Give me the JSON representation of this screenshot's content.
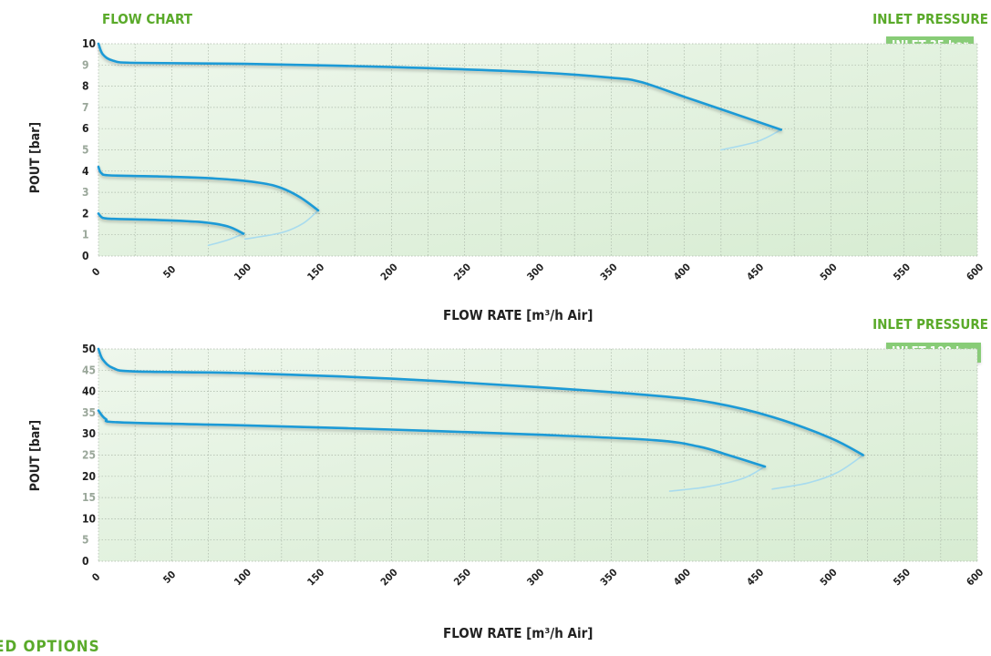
{
  "flow_chart_label": "FLOW CHART",
  "footer_partial_text": "ED OPTIONS",
  "colors": {
    "accent_green": "#5aaa2a",
    "curve_blue": "#1a9ad6",
    "legend_bg": "#88cc77",
    "plot_bg": "#e4f2e0"
  },
  "chart_data": [
    {
      "type": "line",
      "xlabel": "FLOW RATE [m³/h Air]",
      "ylabel": "POUT [bar]",
      "xlim": [
        0,
        600
      ],
      "ylim": [
        0,
        10
      ],
      "x_ticks": [
        "0",
        "50",
        "100",
        "150",
        "200",
        "250",
        "300",
        "350",
        "400",
        "450",
        "500",
        "550",
        "600"
      ],
      "y_ticks": [
        {
          "v": 0,
          "label": "0",
          "major": true
        },
        {
          "v": 1,
          "label": "1",
          "major": false
        },
        {
          "v": 2,
          "label": "2",
          "major": true
        },
        {
          "v": 3,
          "label": "3",
          "major": false
        },
        {
          "v": 4,
          "label": "4",
          "major": true
        },
        {
          "v": 5,
          "label": "5",
          "major": false
        },
        {
          "v": 6,
          "label": "6",
          "major": true
        },
        {
          "v": 7,
          "label": "7",
          "major": false
        },
        {
          "v": 8,
          "label": "8",
          "major": true
        },
        {
          "v": 9,
          "label": "9",
          "major": false
        },
        {
          "v": 10,
          "label": "10",
          "major": true
        }
      ],
      "grid": true,
      "legend_title": "INLET PRESSURE",
      "legend_label": "INLET  35 bar",
      "legend_position": "top-right",
      "series": [
        {
          "points": [
            [
              0,
              10
            ],
            [
              3,
              9.5
            ],
            [
              10,
              9.2
            ],
            [
              25,
              9.1
            ],
            [
              100,
              9.05
            ],
            [
              200,
              8.9
            ],
            [
              300,
              8.65
            ],
            [
              350,
              8.4
            ],
            [
              370,
              8.2
            ],
            [
              400,
              7.5
            ],
            [
              430,
              6.8
            ],
            [
              466,
              5.95
            ]
          ],
          "tail": [
            [
              466,
              5.95
            ],
            [
              450,
              5.4
            ],
            [
              425,
              5.0
            ]
          ]
        },
        {
          "points": [
            [
              0,
              4.2
            ],
            [
              2,
              3.9
            ],
            [
              8,
              3.8
            ],
            [
              40,
              3.75
            ],
            [
              80,
              3.65
            ],
            [
              110,
              3.45
            ],
            [
              125,
              3.2
            ],
            [
              138,
              2.75
            ],
            [
              150,
              2.15
            ]
          ],
          "tail": [
            [
              150,
              2.15
            ],
            [
              140,
              1.55
            ],
            [
              125,
              1.1
            ],
            [
              100,
              0.8
            ]
          ]
        },
        {
          "points": [
            [
              0,
              2
            ],
            [
              3,
              1.8
            ],
            [
              10,
              1.75
            ],
            [
              40,
              1.7
            ],
            [
              70,
              1.6
            ],
            [
              88,
              1.4
            ],
            [
              99,
              1.05
            ]
          ],
          "tail": [
            [
              99,
              1.05
            ],
            [
              88,
              0.75
            ],
            [
              75,
              0.5
            ]
          ]
        }
      ]
    },
    {
      "type": "line",
      "xlabel": "FLOW RATE [m³/h Air]",
      "ylabel": "POUT [bar]",
      "xlim": [
        0,
        600
      ],
      "ylim": [
        0,
        50
      ],
      "x_ticks": [
        "0",
        "50",
        "100",
        "150",
        "200",
        "250",
        "300",
        "350",
        "400",
        "450",
        "500",
        "550",
        "600"
      ],
      "y_ticks": [
        {
          "v": 0,
          "label": "0",
          "major": true
        },
        {
          "v": 5,
          "label": "5",
          "major": false
        },
        {
          "v": 10,
          "label": "10",
          "major": true
        },
        {
          "v": 15,
          "label": "15",
          "major": false
        },
        {
          "v": 20,
          "label": "20",
          "major": true
        },
        {
          "v": 25,
          "label": "25",
          "major": false
        },
        {
          "v": 30,
          "label": "30",
          "major": true
        },
        {
          "v": 35,
          "label": "35",
          "major": false
        },
        {
          "v": 40,
          "label": "40",
          "major": true
        },
        {
          "v": 45,
          "label": "45",
          "major": false
        },
        {
          "v": 50,
          "label": "50",
          "major": true
        }
      ],
      "grid": true,
      "legend_title": "INLET PRESSURE",
      "legend_label": "INLET 100 bar",
      "legend_position": "top-right",
      "series": [
        {
          "points": [
            [
              0,
              50
            ],
            [
              3,
              47.5
            ],
            [
              10,
              45.5
            ],
            [
              25,
              44.7
            ],
            [
              100,
              44.3
            ],
            [
              200,
              43
            ],
            [
              300,
              41
            ],
            [
              380,
              39
            ],
            [
              420,
              37.3
            ],
            [
              460,
              34
            ],
            [
              500,
              29
            ],
            [
              522,
              25
            ]
          ],
          "tail": [
            [
              522,
              25
            ],
            [
              505,
              21
            ],
            [
              485,
              18.5
            ],
            [
              460,
              17
            ]
          ]
        },
        {
          "points": [
            [
              0,
              35.5
            ],
            [
              5,
              33.5
            ],
            [
              15,
              32.7
            ],
            [
              100,
              32
            ],
            [
              200,
              31
            ],
            [
              300,
              29.8
            ],
            [
              380,
              28.5
            ],
            [
              410,
              27
            ],
            [
              430,
              25
            ],
            [
              455,
              22.3
            ]
          ],
          "tail": [
            [
              455,
              22.3
            ],
            [
              440,
              19.5
            ],
            [
              415,
              17.5
            ],
            [
              390,
              16.5
            ]
          ]
        }
      ]
    }
  ]
}
